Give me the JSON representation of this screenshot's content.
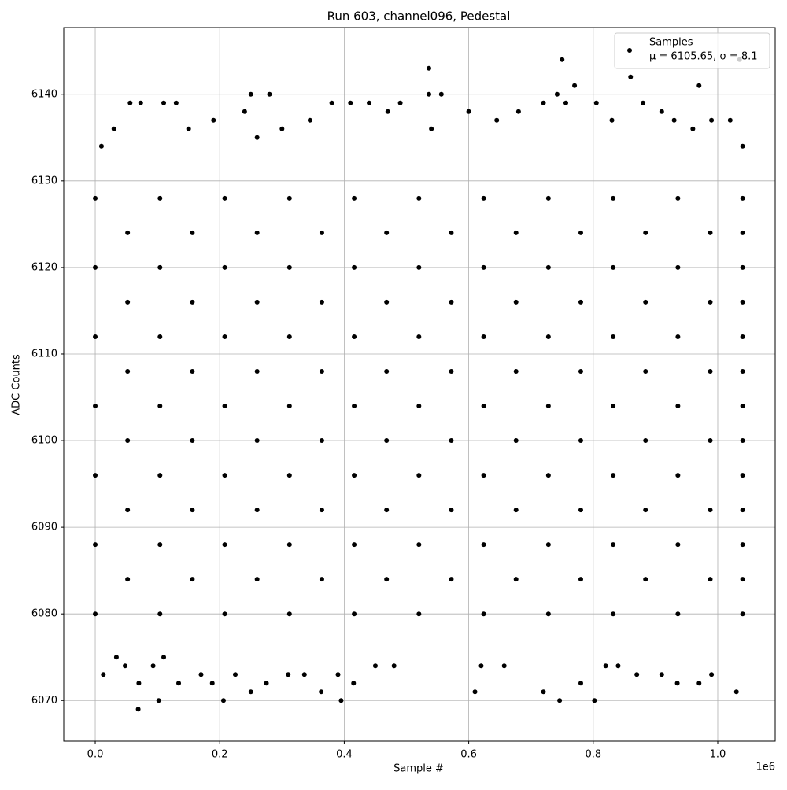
{
  "chart_data": {
    "type": "scatter",
    "title": "Run 603, channel096, Pedestal",
    "x_label": "Sample #",
    "y_label": "ADC Counts",
    "x_offset_label": "1e6",
    "xlim": [
      -0.0506,
      1.0923
    ],
    "ylim": [
      6065.3,
      6147.7
    ],
    "xticks": [
      {
        "value": 0,
        "label": "0.0"
      },
      0.2,
      0.4,
      0.6,
      0.8,
      {
        "value": 1,
        "label": "1.0"
      }
    ],
    "yticks": [
      6070,
      6080,
      6090,
      6100,
      6110,
      6120,
      6130,
      6140
    ],
    "grid": true,
    "legend_position": "upper right",
    "legend_note": "μ = 6105.65, σ = 8.1",
    "series": [
      {
        "name": "Samples",
        "color": "#000000",
        "x": [
          0.069,
          0.102,
          0.206,
          0.395,
          0.746,
          0.802,
          0.536,
          0.75,
          0.86,
          0.77,
          0.97,
          1.035,
          0.25,
          0.28,
          0.536,
          0.556,
          0.742,
          0.013,
          0.034,
          0.048,
          0.07,
          0.093,
          0.11,
          0.134,
          0.17,
          0.188,
          0.225,
          0.25,
          0.275,
          0.31,
          0.336,
          0.363,
          0.39,
          0.415,
          0.45,
          0.48,
          0.62,
          0.61,
          0.657,
          0.72,
          0.78,
          0.82,
          0.84,
          0.87,
          0.91,
          0.935,
          0.97,
          0.99,
          1.03,
          0.01,
          0.03,
          0.056,
          0.073,
          0.11,
          0.13,
          0.15,
          0.19,
          0.24,
          0.26,
          0.3,
          0.345,
          0.38,
          0.41,
          0.44,
          0.47,
          0.49,
          0.54,
          0.6,
          0.645,
          0.68,
          0.72,
          0.756,
          0.805,
          0.83,
          0.88,
          0.91,
          0.93,
          0.96,
          0.99,
          1.02,
          1.04,
          0,
          0.104,
          0.208,
          0.312,
          0.416,
          0.52,
          0.624,
          0.728,
          0.832,
          0.936,
          1.04,
          0.052,
          0.156,
          0.26,
          0.364,
          0.468,
          0.572,
          0.676,
          0.78,
          0.884,
          0.988,
          1.04,
          0,
          0.104,
          0.208,
          0.312,
          0.416,
          0.52,
          0.624,
          0.728,
          0.832,
          0.936,
          1.04,
          0.052,
          0.156,
          0.26,
          0.364,
          0.468,
          0.572,
          0.676,
          0.78,
          0.884,
          0.988,
          1.04,
          0,
          0.104,
          0.208,
          0.312,
          0.416,
          0.52,
          0.624,
          0.728,
          0.832,
          0.936,
          1.04,
          0.052,
          0.156,
          0.26,
          0.364,
          0.468,
          0.572,
          0.676,
          0.78,
          0.884,
          0.988,
          1.04,
          0,
          0.104,
          0.208,
          0.312,
          0.416,
          0.52,
          0.624,
          0.728,
          0.832,
          0.936,
          1.04,
          0.052,
          0.156,
          0.26,
          0.364,
          0.468,
          0.572,
          0.676,
          0.78,
          0.884,
          0.988,
          1.04,
          0,
          0.104,
          0.208,
          0.312,
          0.416,
          0.52,
          0.624,
          0.728,
          0.832,
          0.936,
          1.04,
          0.052,
          0.156,
          0.26,
          0.364,
          0.468,
          0.572,
          0.676,
          0.78,
          0.884,
          0.988,
          1.04,
          0,
          0.104,
          0.208,
          0.312,
          0.416,
          0.52,
          0.624,
          0.728,
          0.832,
          0.936,
          1.04,
          0.052,
          0.156,
          0.26,
          0.364,
          0.468,
          0.572,
          0.676,
          0.78,
          0.884,
          0.988,
          1.04,
          0,
          0.104,
          0.208,
          0.312,
          0.416,
          0.52,
          0.624,
          0.728,
          0.832,
          0.936,
          1.04
        ],
        "values": [
          6069,
          6070,
          6070,
          6070,
          6070,
          6070,
          6143,
          6144,
          6142,
          6141,
          6141,
          6144,
          6140,
          6140,
          6140,
          6140,
          6140,
          6073,
          6075,
          6074,
          6072,
          6074,
          6075,
          6072,
          6073,
          6072,
          6073,
          6071,
          6072,
          6073,
          6073,
          6071,
          6073,
          6072,
          6074,
          6074,
          6074,
          6071,
          6074,
          6071,
          6072,
          6074,
          6074,
          6073,
          6073,
          6072,
          6072,
          6073,
          6071,
          6134,
          6136,
          6139,
          6139,
          6139,
          6139,
          6136,
          6137,
          6138,
          6135,
          6136,
          6137,
          6139,
          6139,
          6139,
          6138,
          6139,
          6136,
          6138,
          6137,
          6138,
          6139,
          6139,
          6139,
          6137,
          6139,
          6138,
          6137,
          6136,
          6137,
          6137,
          6134,
          6080,
          6080,
          6080,
          6080,
          6080,
          6080,
          6080,
          6080,
          6080,
          6080,
          6080,
          6084,
          6084,
          6084,
          6084,
          6084,
          6084,
          6084,
          6084,
          6084,
          6084,
          6084,
          6088,
          6088,
          6088,
          6088,
          6088,
          6088,
          6088,
          6088,
          6088,
          6088,
          6088,
          6092,
          6092,
          6092,
          6092,
          6092,
          6092,
          6092,
          6092,
          6092,
          6092,
          6092,
          6096,
          6096,
          6096,
          6096,
          6096,
          6096,
          6096,
          6096,
          6096,
          6096,
          6096,
          6100,
          6100,
          6100,
          6100,
          6100,
          6100,
          6100,
          6100,
          6100,
          6100,
          6100,
          6104,
          6104,
          6104,
          6104,
          6104,
          6104,
          6104,
          6104,
          6104,
          6104,
          6104,
          6108,
          6108,
          6108,
          6108,
          6108,
          6108,
          6108,
          6108,
          6108,
          6108,
          6108,
          6112,
          6112,
          6112,
          6112,
          6112,
          6112,
          6112,
          6112,
          6112,
          6112,
          6112,
          6116,
          6116,
          6116,
          6116,
          6116,
          6116,
          6116,
          6116,
          6116,
          6116,
          6116,
          6120,
          6120,
          6120,
          6120,
          6120,
          6120,
          6120,
          6120,
          6120,
          6120,
          6120,
          6124,
          6124,
          6124,
          6124,
          6124,
          6124,
          6124,
          6124,
          6124,
          6124,
          6124,
          6128,
          6128,
          6128,
          6128,
          6128,
          6128,
          6128,
          6128,
          6128,
          6128,
          6128
        ]
      }
    ]
  }
}
